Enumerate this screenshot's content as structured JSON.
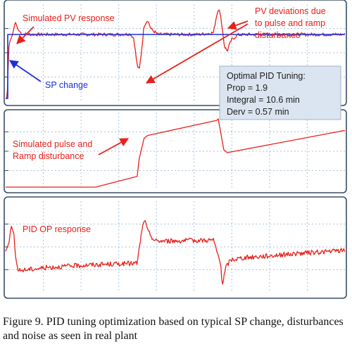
{
  "chart_data": [
    {
      "type": "line",
      "panel": "top",
      "series": [
        {
          "name": "Simulated PV response",
          "color": "#e8201a",
          "x": [
            0,
            2,
            5,
            10,
            14,
            18,
            24,
            40,
            60,
            100,
            160,
            180,
            185,
            190,
            193,
            196,
            200,
            205,
            210,
            220,
            240,
            280,
            300,
            305,
            308,
            312,
            316,
            320,
            326,
            335,
            350,
            400,
            490
          ],
          "y": [
            0,
            0,
            6,
            7,
            8.4,
            7.5,
            7.05,
            7,
            7,
            7,
            7,
            7.05,
            6.6,
            3.6,
            3.1,
            5,
            8,
            8.6,
            7.6,
            7,
            7,
            7,
            7.2,
            9.2,
            10,
            8.2,
            5.7,
            5.2,
            6.4,
            6.95,
            7,
            7,
            7
          ]
        },
        {
          "name": "SP change",
          "color": "#1a2ee0",
          "x": [
            0,
            3,
            3,
            490
          ],
          "y": [
            0,
            0,
            7,
            7
          ]
        }
      ],
      "annotations": [
        "Simulated PV response",
        "SP change",
        "PV deviations due to pulse and ramp disturbance"
      ]
    },
    {
      "type": "line",
      "panel": "middle",
      "series": [
        {
          "name": "Simulated pulse and Ramp disturbance",
          "color": "#e8201a",
          "x": [
            0,
            130,
            190,
            193,
            200,
            205,
            305,
            307,
            315,
            320,
            490
          ],
          "y": [
            0,
            0,
            1.5,
            4,
            6.8,
            7.2,
            9.3,
            9.5,
            5.2,
            4.8,
            7.9
          ]
        }
      ],
      "annotations": [
        "Simulated pulse and Ramp disturbance"
      ]
    },
    {
      "type": "line",
      "panel": "bottom",
      "series": [
        {
          "name": "PID OP response",
          "color": "#e8201a",
          "x": [
            0,
            5,
            8,
            12,
            14,
            18,
            25,
            60,
            120,
            190,
            195,
            200,
            205,
            215,
            240,
            300,
            310,
            313,
            318,
            325,
            340,
            400,
            490
          ],
          "y": [
            4.5,
            5.5,
            7.5,
            6.5,
            4,
            2.2,
            2.3,
            2.6,
            2.9,
            3.1,
            6,
            8.3,
            6.9,
            5.7,
            5.7,
            5.8,
            3.2,
            0.6,
            2.6,
            3.5,
            3.7,
            4.1,
            4.6
          ]
        }
      ],
      "annotations": [
        "PID OP response"
      ]
    }
  ],
  "labels": {
    "pv_response": "Simulated PV response",
    "sp_change": "SP change",
    "deviations_line1": "PV deviations due",
    "deviations_line2": "to pulse and ramp",
    "deviations_line3": "disturbance",
    "disturbance_line1": "Simulated pulse and",
    "disturbance_line2": "Ramp disturbance",
    "op_response": "PID OP response"
  },
  "tuning": {
    "title": "Optimal PID Tuning:",
    "prop": "Prop = 1.9",
    "integral": "Integral = 10.6 min",
    "derv": "Derv = 0.57 min"
  },
  "caption": "Figure 9.  PID tuning optimization based on typical SP change, disturbances and noise as seen in real plant",
  "colors": {
    "trace": "#e8201a",
    "setpoint": "#1a2ee0",
    "grid": "#a9c3dc",
    "frame": "#3a4e63",
    "tuning_box": "#dbe5f1"
  }
}
